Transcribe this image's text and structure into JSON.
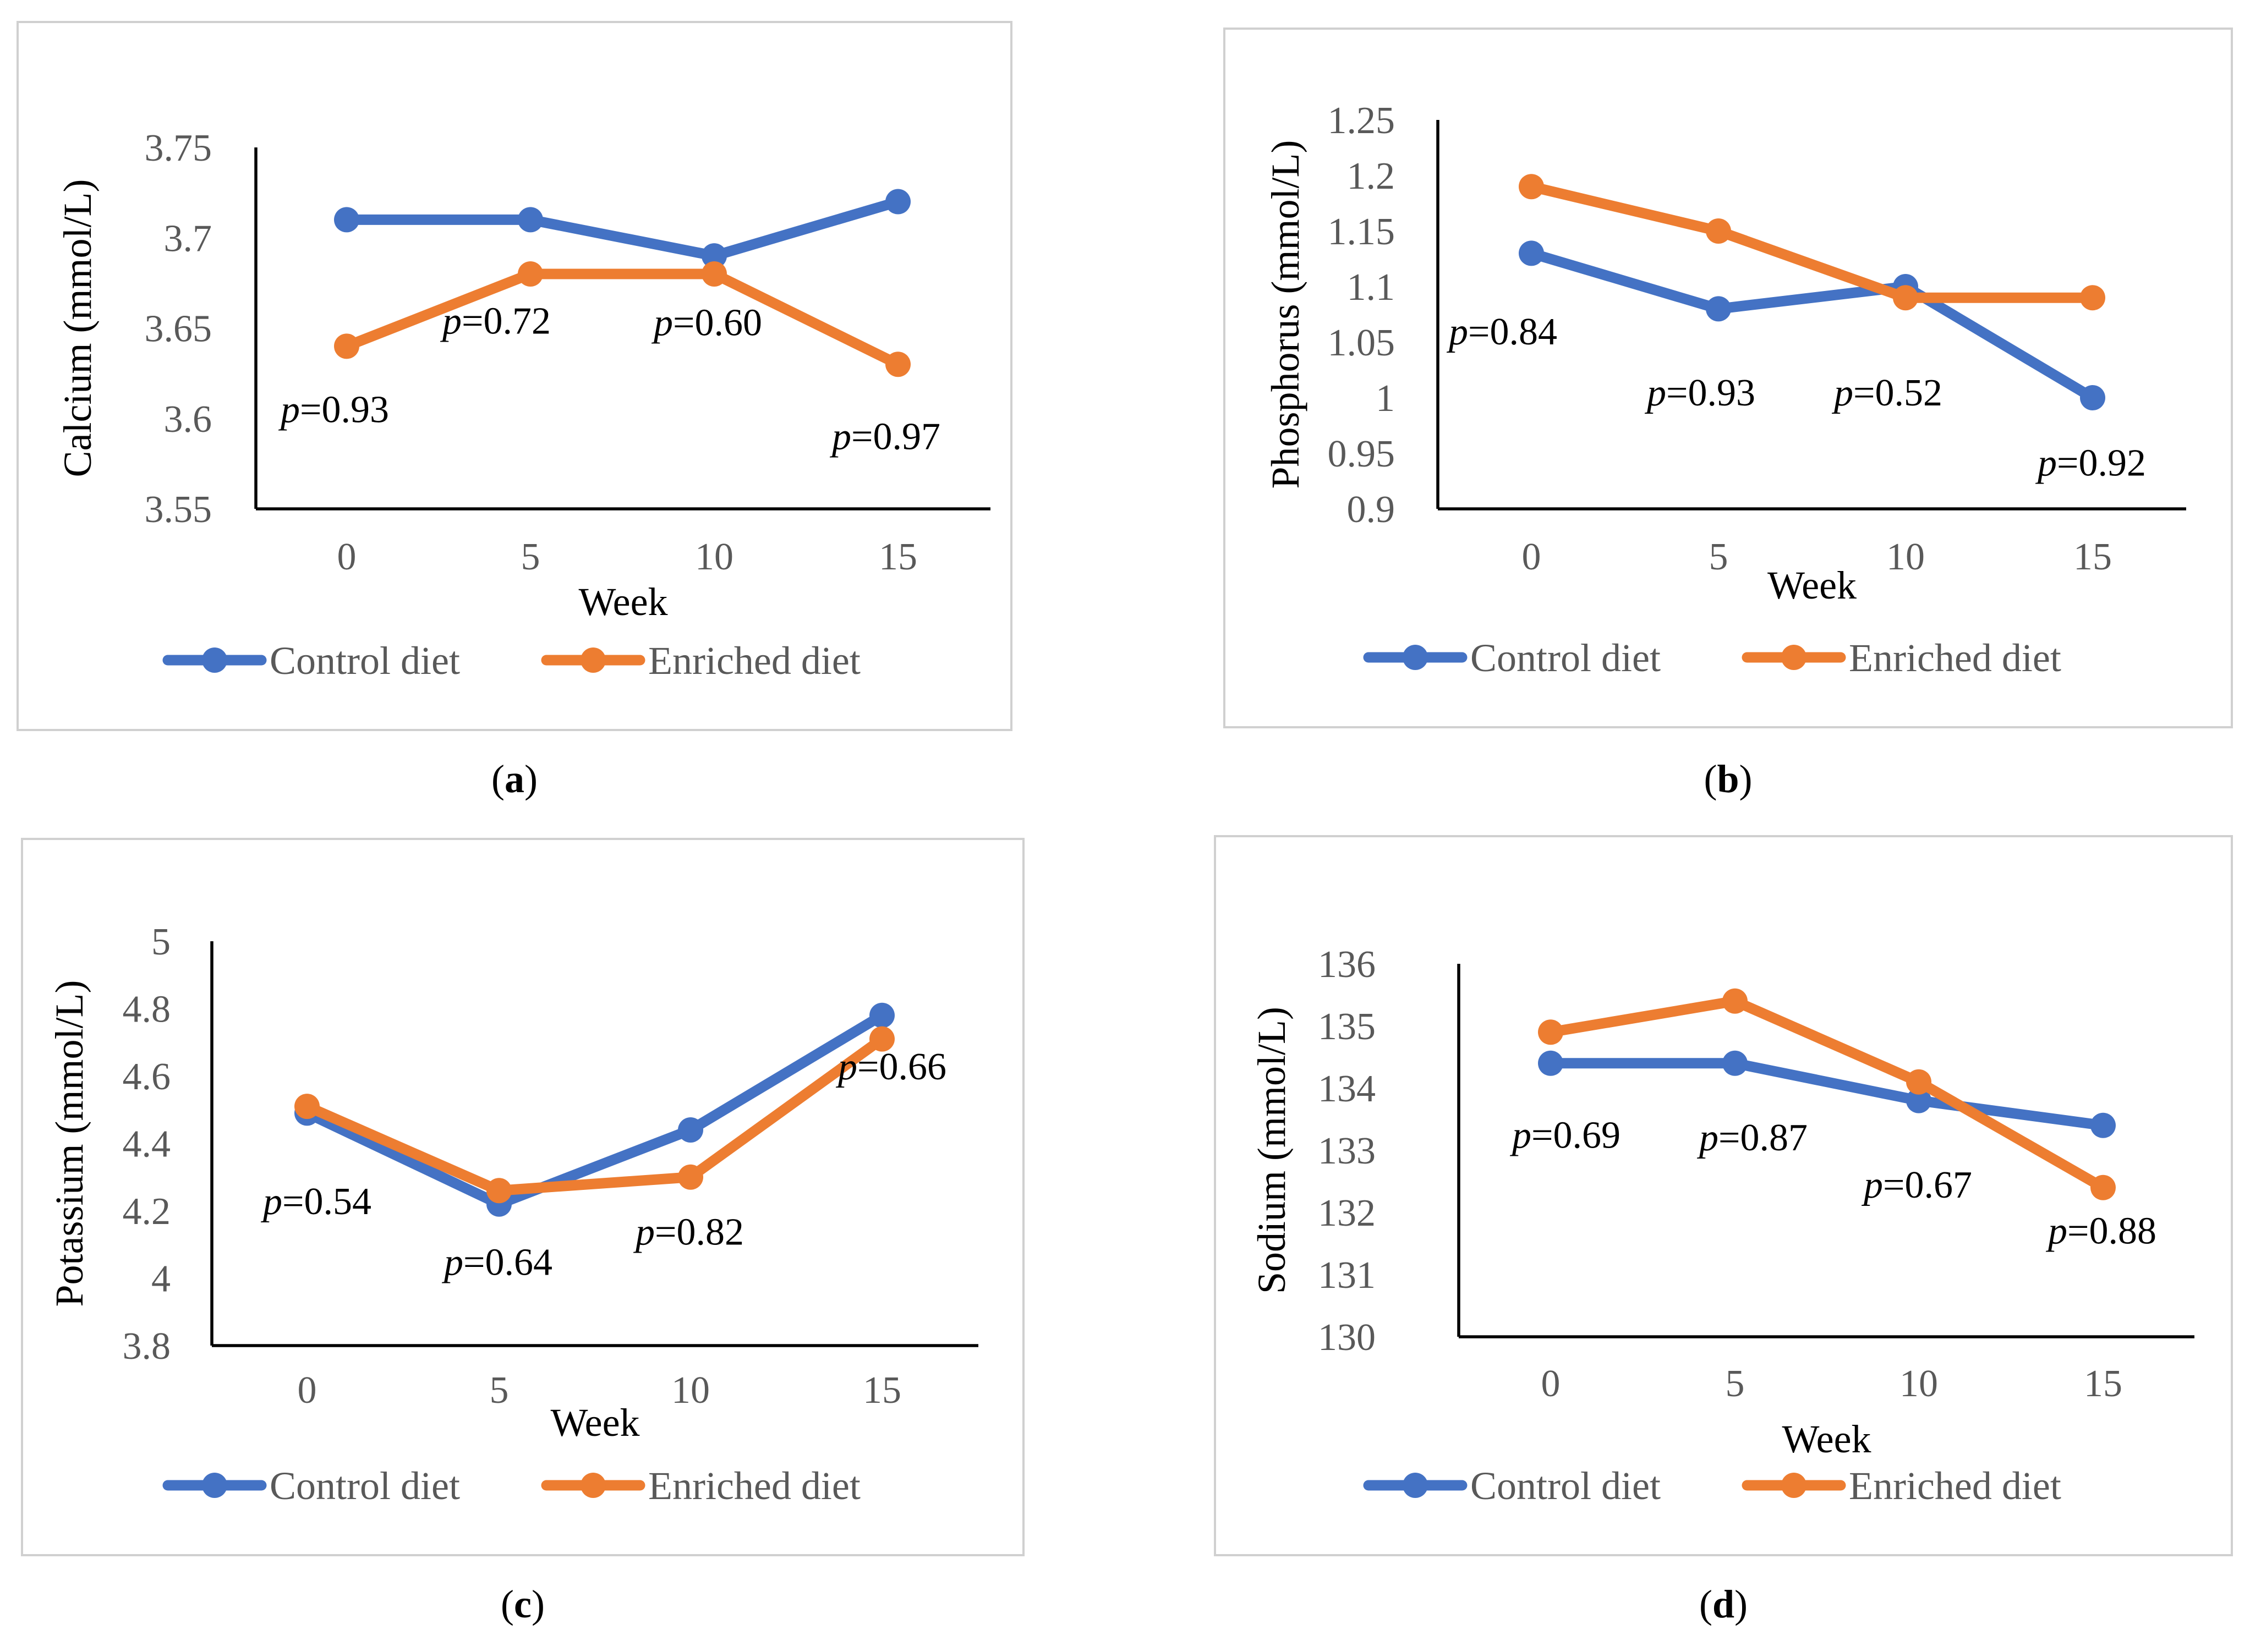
{
  "colors": {
    "control": "#4472C4",
    "enriched": "#ED7D31"
  },
  "chart_data": [
    {
      "id": "a",
      "caption": "a",
      "type": "line",
      "xlabel": "Week",
      "ylabel": "Calcium (mmol/L)",
      "categories": [
        "0",
        "5",
        "10",
        "15"
      ],
      "ylim": [
        3.55,
        3.75
      ],
      "yticks": [
        "3.55",
        "3.6",
        "3.65",
        "3.7",
        "3.75"
      ],
      "series": [
        {
          "name": "Control diet",
          "values": [
            3.71,
            3.71,
            3.69,
            3.72
          ]
        },
        {
          "name": "Enriched diet",
          "values": [
            3.64,
            3.68,
            3.68,
            3.63
          ]
        }
      ],
      "annotations": [
        {
          "prefix": "p",
          "text": "=0.93",
          "category": "0",
          "y": 3.598
        },
        {
          "prefix": "p",
          "text": "=0.72",
          "category": "5",
          "y": 3.647
        },
        {
          "prefix": "p",
          "text": "=0.60",
          "category": "10",
          "y": 3.646
        },
        {
          "prefix": "p",
          "text": "=0.97",
          "category": "15",
          "y": 3.583
        }
      ]
    },
    {
      "id": "b",
      "caption": "b",
      "type": "line",
      "xlabel": "Week",
      "ylabel": "Phosphorus (mmol/L)",
      "categories": [
        "0",
        "5",
        "10",
        "15"
      ],
      "ylim": [
        0.9,
        1.25
      ],
      "yticks": [
        "0.9",
        "0.95",
        "1",
        "1.05",
        "1.1",
        "1.15",
        "1.2",
        "1.25"
      ],
      "series": [
        {
          "name": "Control diet",
          "values": [
            1.13,
            1.08,
            1.1,
            1.0
          ]
        },
        {
          "name": "Enriched diet",
          "values": [
            1.19,
            1.15,
            1.09,
            1.09
          ]
        }
      ],
      "annotations": [
        {
          "prefix": "p",
          "text": "=0.84",
          "category": "0",
          "y": 1.048
        },
        {
          "prefix": "p",
          "text": "=0.93",
          "category": "5",
          "y": 0.993
        },
        {
          "prefix": "p",
          "text": "=0.52",
          "category": "10",
          "y": 0.993
        },
        {
          "prefix": "p",
          "text": "=0.92",
          "category": "15",
          "y": 0.93
        }
      ]
    },
    {
      "id": "c",
      "caption": "c",
      "type": "line",
      "xlabel": "Week",
      "ylabel": "Potassium (mmol/L)",
      "categories": [
        "0",
        "5",
        "10",
        "15"
      ],
      "ylim": [
        3.8,
        5
      ],
      "yticks": [
        "3.8",
        "4",
        "4.2",
        "4.4",
        "4.6",
        "4.8",
        "5"
      ],
      "series": [
        {
          "name": "Control diet",
          "values": [
            4.49,
            4.22,
            4.44,
            4.78
          ]
        },
        {
          "name": "Enriched diet",
          "values": [
            4.51,
            4.26,
            4.3,
            4.71
          ]
        }
      ],
      "annotations": [
        {
          "prefix": "p",
          "text": "=0.54",
          "category": "0",
          "y": 4.19
        },
        {
          "prefix": "p",
          "text": "=0.64",
          "category": "5",
          "y": 4.01
        },
        {
          "prefix": "p",
          "text": "=0.82",
          "category": "10",
          "y": 4.1
        },
        {
          "prefix": "p",
          "text": "=0.66",
          "category": "15",
          "y": 4.59
        }
      ]
    },
    {
      "id": "d",
      "caption": "d",
      "type": "line",
      "xlabel": "Week",
      "ylabel": "Sodium (mmol/L)",
      "categories": [
        "0",
        "5",
        "10",
        "15"
      ],
      "ylim": [
        130,
        136
      ],
      "yticks": [
        "130",
        "131",
        "132",
        "133",
        "134",
        "135",
        "136"
      ],
      "series": [
        {
          "name": "Control diet",
          "values": [
            134.4,
            134.4,
            133.8,
            133.4
          ]
        },
        {
          "name": "Enriched diet",
          "values": [
            134.9,
            135.4,
            134.1,
            132.4
          ]
        }
      ],
      "annotations": [
        {
          "prefix": "p",
          "text": "=0.69",
          "category": "0",
          "y": 133.04
        },
        {
          "prefix": "p",
          "text": "=0.87",
          "category": "5",
          "y": 133.0
        },
        {
          "prefix": "p",
          "text": "=0.67",
          "category": "10",
          "y": 132.24
        },
        {
          "prefix": "p",
          "text": "=0.88",
          "category": "15",
          "y": 131.5
        }
      ]
    }
  ]
}
